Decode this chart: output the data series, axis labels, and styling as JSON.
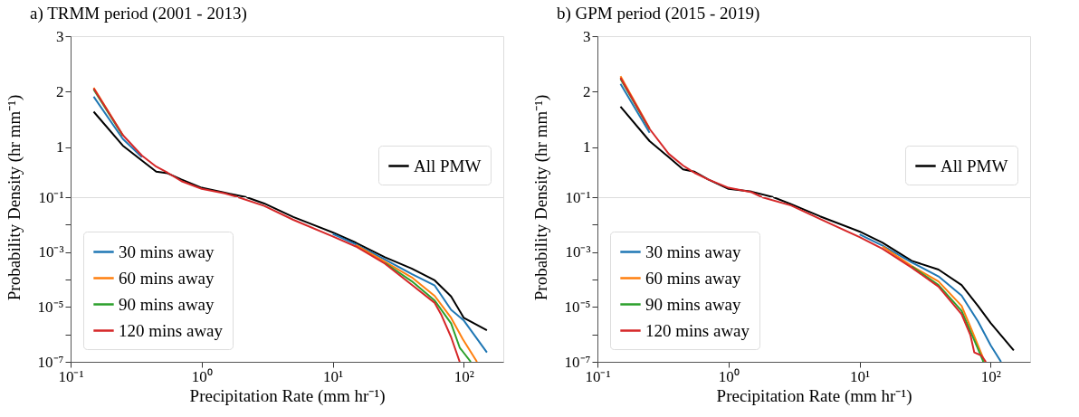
{
  "chart_data": [
    {
      "type": "line",
      "title": "a) TRMM period (2001 - 2013)",
      "xlim": [
        0.1,
        200
      ],
      "ylim": [
        0.1,
        3
      ],
      "yticks": [
        1,
        2,
        3
      ],
      "log": "x",
      "tick_labels": "y",
      "legend": "bottom right",
      "series": [
        {
          "name": "All PMW",
          "color": "#000000",
          "x": [
            0.15,
            0.25,
            0.35,
            0.45,
            0.55,
            0.7,
            1.0,
            1.5,
            2.2
          ],
          "values": [
            1.64,
            1.03,
            0.76,
            0.56,
            0.53,
            0.42,
            0.27,
            0.18,
            0.1
          ]
        },
        {
          "color": "#1f77b4",
          "x": [
            0.15,
            0.25,
            0.35
          ],
          "values": [
            1.91,
            1.15,
            0.82
          ]
        },
        {
          "color": "#ff7f0e",
          "x": [
            0.15,
            0.25
          ],
          "values": [
            2.07,
            1.22
          ]
        },
        {
          "color": "#2ca02c",
          "x": [
            0.15,
            0.25
          ],
          "values": [
            2.04,
            1.21
          ]
        },
        {
          "color": "#d62728",
          "x": [
            0.15,
            0.25,
            0.35,
            0.45,
            0.55,
            0.7,
            1.0,
            1.5,
            1.9
          ],
          "values": [
            2.06,
            1.22,
            0.85,
            0.65,
            0.54,
            0.39,
            0.25,
            0.17,
            0.1
          ]
        }
      ]
    },
    {
      "type": "line",
      "title": "b) GPM period (2015 - 2019)",
      "xlim": [
        0.1,
        200
      ],
      "ylim": [
        0.1,
        3
      ],
      "yticks": [
        1,
        2,
        3
      ],
      "log": "x",
      "tick_labels": "y",
      "legend": "bottom right",
      "series": [
        {
          "name": "All PMW",
          "color": "#000000",
          "x": [
            0.15,
            0.25,
            0.35,
            0.45,
            0.55,
            0.7,
            1.0,
            1.5,
            2.2
          ],
          "values": [
            1.73,
            1.11,
            0.82,
            0.6,
            0.56,
            0.42,
            0.25,
            0.2,
            0.1
          ]
        },
        {
          "color": "#1f77b4",
          "x": [
            0.15,
            0.25
          ],
          "values": [
            2.14,
            1.26
          ]
        },
        {
          "color": "#ff7f0e",
          "x": [
            0.15,
            0.25
          ],
          "values": [
            2.28,
            1.34
          ]
        },
        {
          "color": "#2ca02c",
          "x": [
            0.15,
            0.25
          ],
          "values": [
            2.23,
            1.32
          ]
        },
        {
          "color": "#d62728",
          "x": [
            0.15,
            0.25,
            0.35,
            0.45,
            0.55,
            0.7,
            1.0,
            1.5,
            1.8
          ],
          "values": [
            2.25,
            1.33,
            0.88,
            0.67,
            0.54,
            0.42,
            0.27,
            0.19,
            0.1
          ]
        }
      ]
    },
    {
      "type": "line",
      "xlabel": "Precipitation Rate (mm hr⁻¹)",
      "ylabel": "Probability Density (hr mm⁻¹)",
      "xlim": [
        0.1,
        200
      ],
      "ylim": [
        1e-07,
        0.1
      ],
      "xticks": [
        {
          "value": 0.1,
          "label": "10⁻¹"
        },
        {
          "value": 1,
          "label": "10⁰"
        },
        {
          "value": 10,
          "label": "10¹"
        },
        {
          "value": 100,
          "label": "10²"
        }
      ],
      "yticks": [
        {
          "value": 1e-07,
          "label": "10⁻⁷"
        },
        {
          "value": 1e-06,
          "label": null
        },
        {
          "value": 1e-05,
          "label": "10⁻⁵"
        },
        {
          "value": 0.0001,
          "label": null
        },
        {
          "value": 0.001,
          "label": "10⁻³"
        },
        {
          "value": 0.01,
          "label": null
        },
        {
          "value": 0.1,
          "label": "10⁻¹"
        }
      ],
      "log": "xy",
      "legend": "bottom left",
      "series": [
        {
          "color": "#000000",
          "x": [
            2.2,
            3,
            5,
            10,
            15,
            25,
            40,
            60,
            80,
            100,
            150
          ],
          "values": [
            0.1,
            0.059,
            0.019,
            0.0052,
            0.0022,
            0.00065,
            0.00025,
            9.3e-05,
            2.4e-05,
            4e-06,
            1.4e-06
          ]
        },
        {
          "name": "30 mins away",
          "color": "#1f77b4",
          "x": [
            10,
            15,
            25,
            40,
            60,
            80,
            100,
            150
          ],
          "values": [
            0.0046,
            0.0019,
            0.00054,
            0.00016,
            6e-05,
            7.9e-06,
            3.2e-06,
            2.2e-07
          ]
        },
        {
          "name": "60 mins away",
          "color": "#ff7f0e",
          "x": [
            15,
            25,
            40,
            60,
            80,
            98,
            126
          ],
          "values": [
            0.0018,
            0.00044,
            0.00012,
            2.5e-05,
            4e-06,
            6.8e-07,
            1e-07
          ]
        },
        {
          "name": "90 mins away",
          "color": "#2ca02c",
          "x": [
            25,
            40,
            60,
            80,
            93,
            113
          ],
          "values": [
            0.0004,
            8.7e-05,
            1.7e-05,
            2.5e-06,
            3.3e-07,
            1e-07
          ]
        },
        {
          "name": "120 mins away",
          "color": "#d62728",
          "x": [
            1.9,
            3,
            5,
            10,
            15,
            25,
            40,
            60,
            67,
            80,
            93
          ],
          "values": [
            0.1,
            0.048,
            0.015,
            0.0037,
            0.0016,
            0.00038,
            6.5e-05,
            1.4e-05,
            5.4e-06,
            7.9e-07,
            1e-07
          ]
        }
      ]
    },
    {
      "type": "line",
      "xlabel": "Precipitation Rate (mm hr⁻¹)",
      "ylabel": "Probability Density (hr mm⁻¹)",
      "xlim": [
        0.1,
        200
      ],
      "ylim": [
        1e-07,
        0.1
      ],
      "xticks": [
        {
          "value": 0.1,
          "label": "10⁻¹"
        },
        {
          "value": 1,
          "label": "10⁰"
        },
        {
          "value": 10,
          "label": "10¹"
        },
        {
          "value": 100,
          "label": "10²"
        }
      ],
      "yticks": [
        {
          "value": 1e-07,
          "label": "10⁻⁷"
        },
        {
          "value": 1e-06,
          "label": null
        },
        {
          "value": 1e-05,
          "label": "10⁻⁵"
        },
        {
          "value": 0.0001,
          "label": null
        },
        {
          "value": 0.001,
          "label": "10⁻³"
        },
        {
          "value": 0.01,
          "label": null
        },
        {
          "value": 0.1,
          "label": "10⁻¹"
        }
      ],
      "log": "xy",
      "legend": "bottom left",
      "series": [
        {
          "color": "#000000",
          "x": [
            2.2,
            3,
            5,
            10,
            15,
            25,
            40,
            60,
            80,
            100,
            150
          ],
          "values": [
            0.1,
            0.056,
            0.02,
            0.0056,
            0.0022,
            0.00048,
            0.00023,
            6.3e-05,
            1.1e-05,
            2.6e-06,
            2.6e-07
          ]
        },
        {
          "name": "30 mins away",
          "color": "#1f77b4",
          "x": [
            10,
            15,
            25,
            40,
            60,
            80,
            100,
            120
          ],
          "values": [
            0.0044,
            0.0017,
            0.00042,
            0.00013,
            2.6e-05,
            3e-06,
            4e-07,
            1e-07
          ]
        },
        {
          "name": "60 mins away",
          "color": "#ff7f0e",
          "x": [
            15,
            25,
            40,
            60,
            70,
            90
          ],
          "values": [
            0.0016,
            0.00031,
            8.5e-05,
            1.1e-05,
            1.9e-06,
            1e-07
          ]
        },
        {
          "name": "90 mins away",
          "color": "#2ca02c",
          "x": [
            25,
            40,
            60,
            80,
            88
          ],
          "values": [
            0.0003,
            6.3e-05,
            7.2e-06,
            3e-07,
            1e-07
          ]
        },
        {
          "name": "120 mins away",
          "color": "#d62728",
          "x": [
            1.8,
            3,
            5,
            10,
            15,
            25,
            40,
            60,
            70,
            75,
            85,
            92
          ],
          "values": [
            0.1,
            0.05,
            0.016,
            0.0035,
            0.0013,
            0.00027,
            5.5e-05,
            5.4e-06,
            9.5e-07,
            2.2e-07,
            1.7e-07,
            1e-07
          ]
        }
      ]
    }
  ]
}
